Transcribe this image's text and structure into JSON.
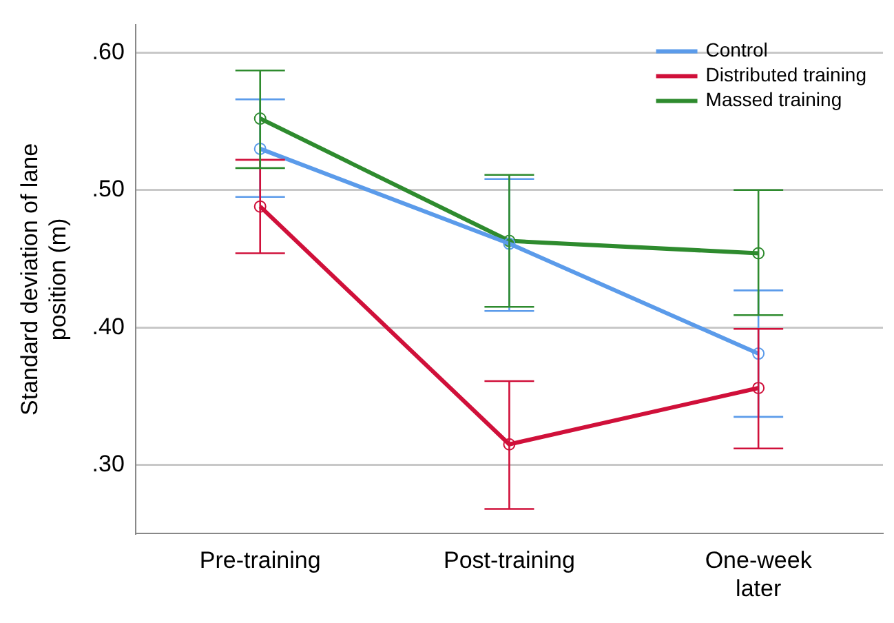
{
  "chart_data": {
    "type": "line",
    "ylabel": "Standard deviation of lane position (m)",
    "categories": [
      "Pre-training",
      "Post-training",
      "One-week later"
    ],
    "series": [
      {
        "name": "Control",
        "color": "#5b9bea",
        "values": [
          0.53,
          0.461,
          0.381
        ],
        "errors": [
          [
            0.495,
            0.566
          ],
          [
            0.412,
            0.508
          ],
          [
            0.335,
            0.427
          ]
        ]
      },
      {
        "name": "Distributed training",
        "color": "#d0103a",
        "values": [
          0.488,
          0.315,
          0.356
        ],
        "errors": [
          [
            0.454,
            0.522
          ],
          [
            0.268,
            0.361
          ],
          [
            0.312,
            0.399
          ]
        ]
      },
      {
        "name": "Massed training",
        "color": "#2e8b2e",
        "values": [
          0.552,
          0.463,
          0.454
        ],
        "errors": [
          [
            0.516,
            0.587
          ],
          [
            0.415,
            0.511
          ],
          [
            0.409,
            0.5
          ]
        ]
      }
    ],
    "ylim": [
      0.25,
      0.62
    ],
    "yticks": [
      {
        "value": 0.3,
        "label": ".30"
      },
      {
        "value": 0.4,
        "label": ".40"
      },
      {
        "value": 0.5,
        "label": ".50"
      },
      {
        "value": 0.6,
        "label": ".60"
      }
    ],
    "grid": "y",
    "legend": "top right",
    "marker": "circle",
    "line_style": "solid"
  }
}
